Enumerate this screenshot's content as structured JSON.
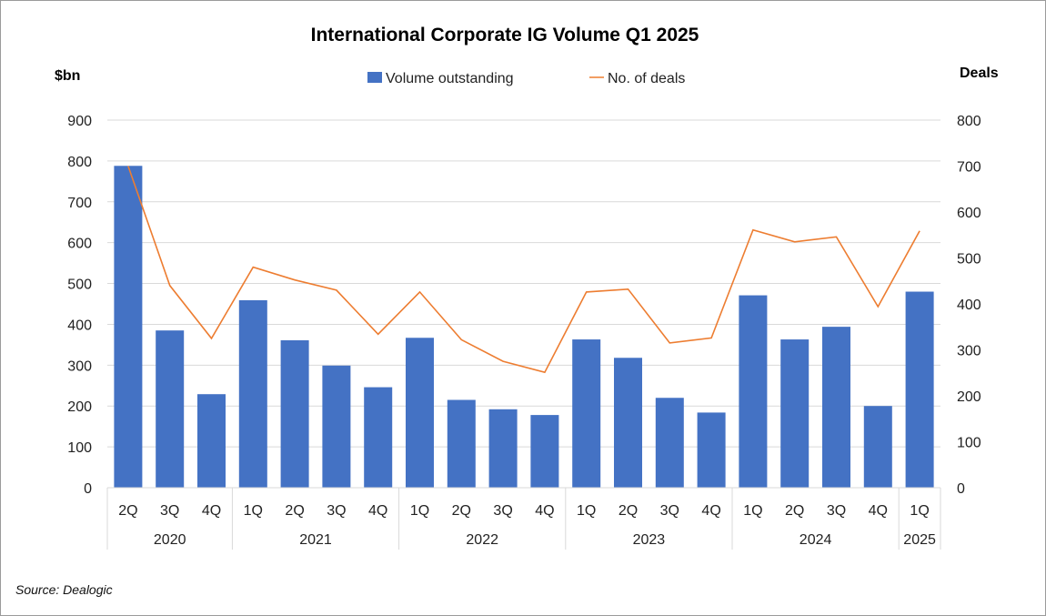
{
  "chart_data": {
    "type": "bar",
    "title": "International Corporate IG Volume Q1 2025",
    "ylabel_left": "$bn",
    "ylabel_right": "Deals",
    "ylim_left": [
      0,
      900
    ],
    "ylim_right": [
      0,
      800
    ],
    "yticks_left": [
      "0",
      "100",
      "200",
      "300",
      "400",
      "500",
      "600",
      "700",
      "800",
      "900"
    ],
    "yticks_right": [
      "0",
      "100",
      "200",
      "300",
      "400",
      "500",
      "600",
      "700",
      "800"
    ],
    "grid": true,
    "legend_position": "top-center",
    "categories": [
      "2Q",
      "3Q",
      "4Q",
      "1Q",
      "2Q",
      "3Q",
      "4Q",
      "1Q",
      "2Q",
      "3Q",
      "4Q",
      "1Q",
      "2Q",
      "3Q",
      "4Q",
      "1Q",
      "2Q",
      "3Q",
      "4Q",
      "1Q"
    ],
    "year_groups": [
      {
        "label": "2020",
        "count": 3
      },
      {
        "label": "2021",
        "count": 4
      },
      {
        "label": "2022",
        "count": 4
      },
      {
        "label": "2023",
        "count": 4
      },
      {
        "label": "2024",
        "count": 4
      },
      {
        "label": "2025",
        "count": 1
      }
    ],
    "series": [
      {
        "name": "Volume outstanding",
        "type": "bar",
        "axis": "left",
        "color": "#4472C4",
        "values": [
          788,
          385,
          229,
          459,
          361,
          299,
          246,
          367,
          215,
          192,
          178,
          363,
          318,
          220,
          184,
          471,
          363,
          394,
          200,
          480
        ]
      },
      {
        "name": "No. of deals",
        "type": "line",
        "axis": "right",
        "color": "#ED7D31",
        "values": [
          700,
          440,
          325,
          480,
          452,
          430,
          334,
          426,
          322,
          275,
          251,
          426,
          432,
          315,
          326,
          561,
          535,
          546,
          394,
          559
        ]
      }
    ]
  },
  "source": "Source: Dealogic"
}
